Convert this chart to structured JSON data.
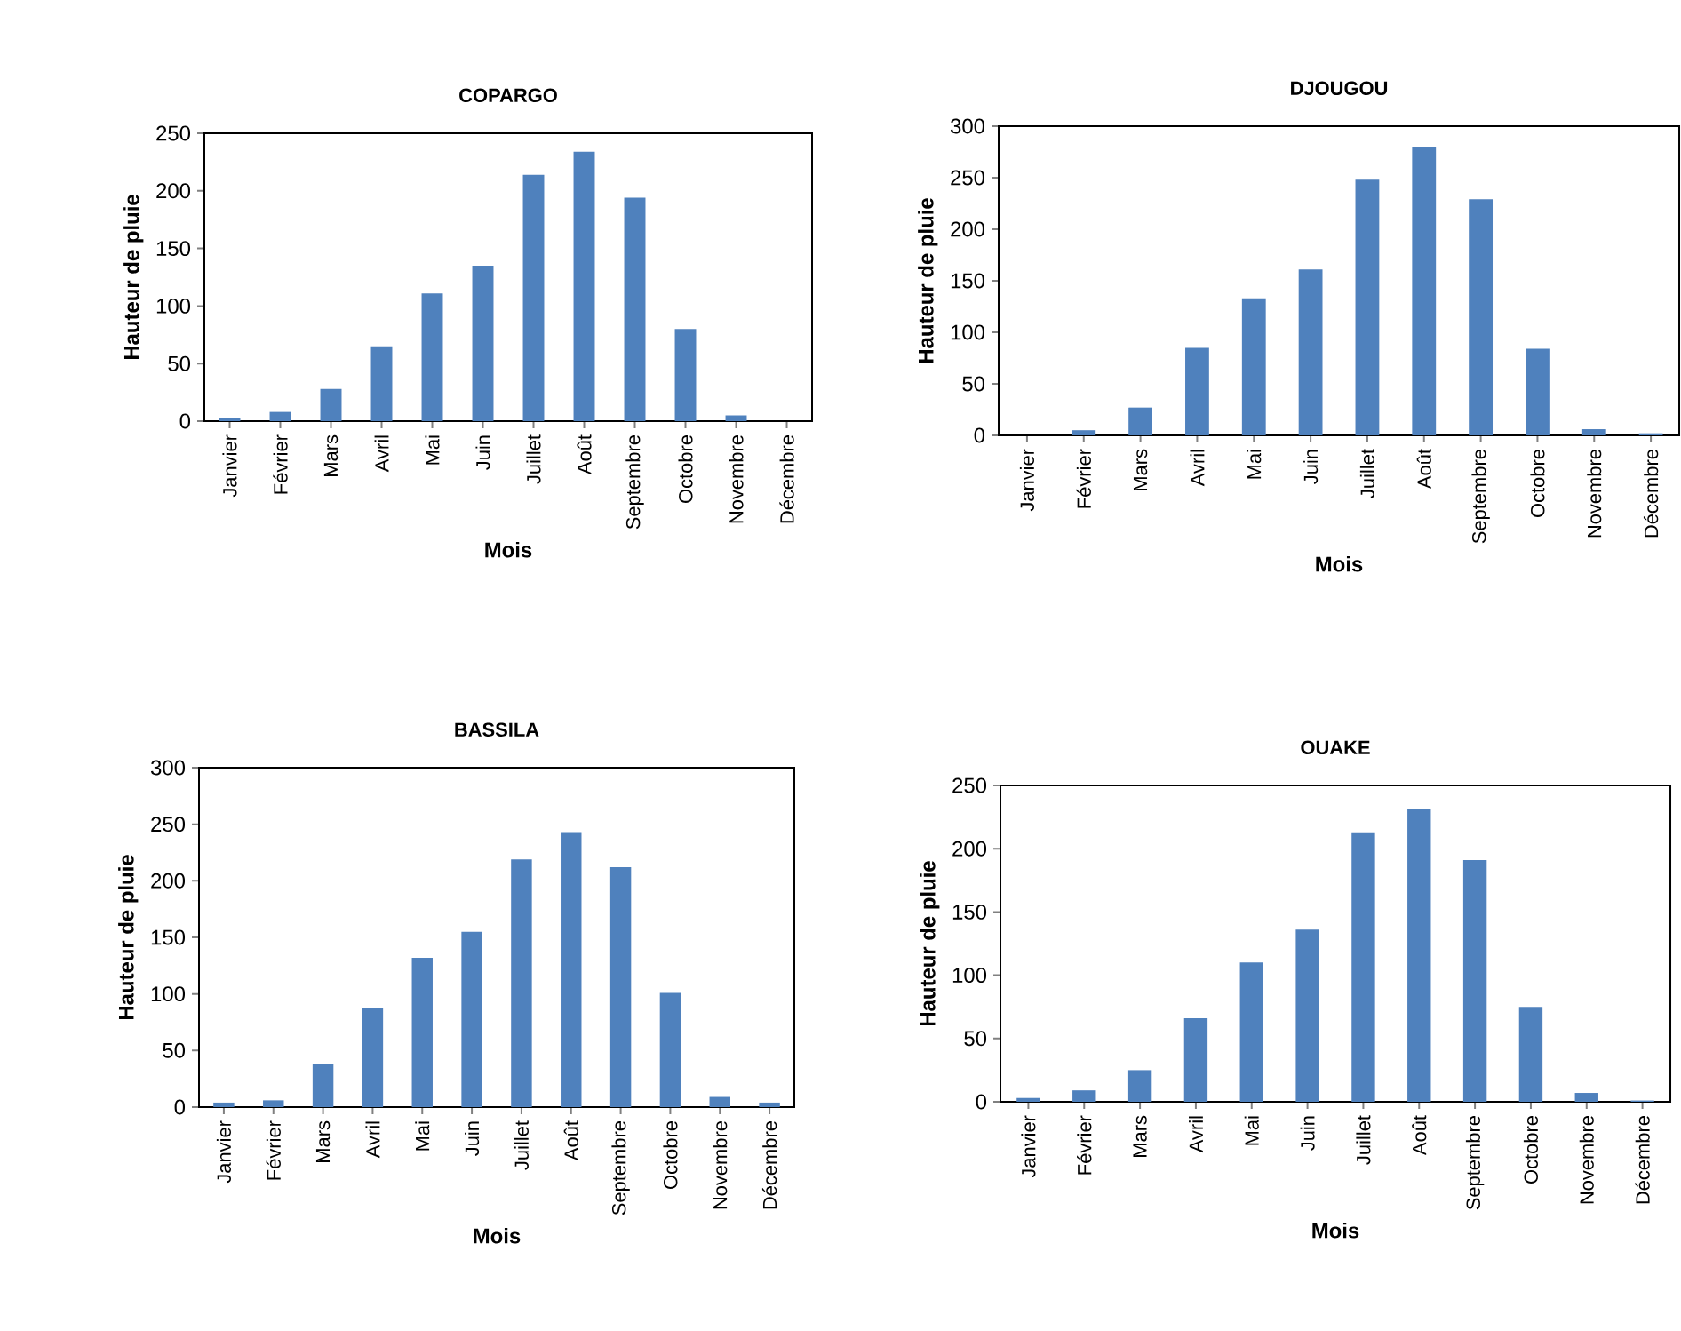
{
  "chart_data": [
    {
      "type": "bar",
      "title": "COPARGO",
      "xlabel": "Mois",
      "ylabel": "Hauteur de pluie",
      "categories": [
        "Janvier",
        "Février",
        "Mars",
        "Avril",
        "Mai",
        "Juin",
        "Juillet",
        "Août",
        "Septembre",
        "Octobre",
        "Novembre",
        "Décembre"
      ],
      "values": [
        3,
        8,
        28,
        65,
        111,
        135,
        214,
        234,
        194,
        80,
        5,
        0
      ],
      "color": "#4f81bd",
      "ylim": [
        0,
        250
      ],
      "yticks": [
        0,
        50,
        100,
        150,
        200,
        250
      ]
    },
    {
      "type": "bar",
      "title": "DJOUGOU",
      "xlabel": "Mois",
      "ylabel": "Hauteur de pluie",
      "categories": [
        "Janvier",
        "Février",
        "Mars",
        "Avril",
        "Mai",
        "Juin",
        "Juillet",
        "Août",
        "Septembre",
        "Octobre",
        "Novembre",
        "Décembre"
      ],
      "values": [
        0,
        5,
        27,
        85,
        133,
        161,
        248,
        280,
        229,
        84,
        6,
        2
      ],
      "color": "#4f81bd",
      "ylim": [
        0,
        300
      ],
      "yticks": [
        0,
        50,
        100,
        150,
        200,
        250,
        300
      ]
    },
    {
      "type": "bar",
      "title": "BASSILA",
      "xlabel": "Mois",
      "ylabel": "Hauteur de pluie",
      "categories": [
        "Janvier",
        "Février",
        "Mars",
        "Avril",
        "Mai",
        "Juin",
        "Juillet",
        "Août",
        "Septembre",
        "Octobre",
        "Novembre",
        "Décembre"
      ],
      "values": [
        4,
        6,
        38,
        88,
        132,
        155,
        219,
        243,
        212,
        101,
        9,
        4
      ],
      "color": "#4f81bd",
      "ylim": [
        0,
        300
      ],
      "yticks": [
        0,
        50,
        100,
        150,
        200,
        250,
        300
      ]
    },
    {
      "type": "bar",
      "title": "OUAKE",
      "xlabel": "Mois",
      "ylabel": "Hauteur de pluie",
      "categories": [
        "Janvier",
        "Février",
        "Mars",
        "Avril",
        "Mai",
        "Juin",
        "Juillet",
        "Août",
        "Septembre",
        "Octobre",
        "Novembre",
        "Décembre"
      ],
      "values": [
        3,
        9,
        25,
        66,
        110,
        136,
        213,
        231,
        191,
        75,
        7,
        1
      ],
      "color": "#4f81bd",
      "ylim": [
        0,
        250
      ],
      "yticks": [
        0,
        50,
        100,
        150,
        200,
        250
      ]
    }
  ]
}
